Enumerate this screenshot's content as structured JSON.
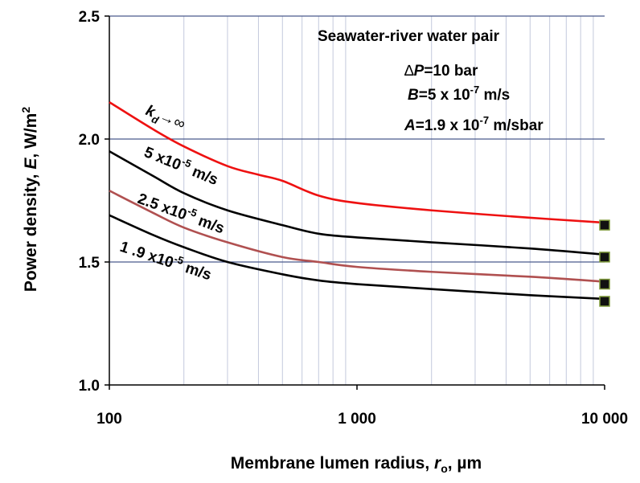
{
  "chart_data": {
    "type": "line",
    "title": "",
    "xlabel": {
      "main": "Membrane lumen radius, ",
      "var": "r",
      "sub": "o",
      "tail": ", µm"
    },
    "ylabel": {
      "main": "Power density, ",
      "var": "E",
      "tail": ", W/m",
      "sup": "2"
    },
    "xscale": "log",
    "xlim": [
      100,
      10000
    ],
    "ylim": [
      1.0,
      2.5
    ],
    "xticks": [
      100,
      1000,
      10000
    ],
    "xtick_labels": [
      "100",
      "1 000",
      "10 000"
    ],
    "yticks": [
      1.0,
      1.5,
      2.0,
      2.5
    ],
    "ytick_labels": [
      "1.0",
      "1.5",
      "2.0",
      "2.5"
    ],
    "grid": {
      "major_y": true,
      "minor_x": true
    },
    "colors": {
      "major_grid": "#4a5a8c",
      "minor_grid": "#c3c9dc",
      "marker_fill": "#111111",
      "marker_edge": "#7f9a3a"
    },
    "annotations": {
      "pair": "Seawater-river water pair",
      "dp": {
        "sym": "∆",
        "var": "P",
        "rest": "=10 bar"
      },
      "b": {
        "var": "B",
        "pre": "=5 x 10",
        "exp": "-7",
        "post": " m/s"
      },
      "a": {
        "var": "A",
        "pre": "=1.9 x 10",
        "exp": "-7",
        "post": " m/sbar"
      }
    },
    "series": [
      {
        "name": "kd→∞",
        "label_parts": {
          "var": "k",
          "sub": "d",
          "tail": "→∞"
        },
        "color": "#ee1111",
        "x": [
          100,
          150,
          200,
          300,
          400,
          500,
          700,
          1000,
          2000,
          5000,
          10000
        ],
        "y": [
          2.15,
          2.04,
          1.97,
          1.89,
          1.855,
          1.83,
          1.77,
          1.74,
          1.71,
          1.68,
          1.66
        ]
      },
      {
        "name": "5 x10-5 m/s",
        "label_parts": {
          "pre": "5 x10",
          "exp": "-5",
          "post": " m/s"
        },
        "color": "#000000",
        "x": [
          100,
          150,
          200,
          300,
          500,
          700,
          1000,
          2000,
          5000,
          10000
        ],
        "y": [
          1.95,
          1.85,
          1.78,
          1.71,
          1.65,
          1.615,
          1.6,
          1.58,
          1.555,
          1.53
        ]
      },
      {
        "name": "2.5 x10-5 m/s",
        "label_parts": {
          "pre": "2.5 x10",
          "exp": "-5",
          "post": " m/s"
        },
        "color": "#b05050",
        "x": [
          100,
          150,
          200,
          300,
          500,
          700,
          1000,
          2000,
          5000,
          10000
        ],
        "y": [
          1.79,
          1.7,
          1.64,
          1.58,
          1.52,
          1.5,
          1.48,
          1.46,
          1.44,
          1.42
        ]
      },
      {
        "name": "1.9 x10-5 m/s",
        "label_parts": {
          "pre": "1 .9 x10",
          "exp": "-5",
          "post": " m/s"
        },
        "color": "#000000",
        "x": [
          100,
          150,
          200,
          300,
          500,
          700,
          1000,
          2000,
          5000,
          10000
        ],
        "y": [
          1.69,
          1.61,
          1.56,
          1.5,
          1.45,
          1.425,
          1.41,
          1.39,
          1.365,
          1.35
        ]
      }
    ],
    "end_markers": {
      "x": 10000,
      "y": [
        1.65,
        1.52,
        1.41,
        1.34
      ]
    }
  }
}
